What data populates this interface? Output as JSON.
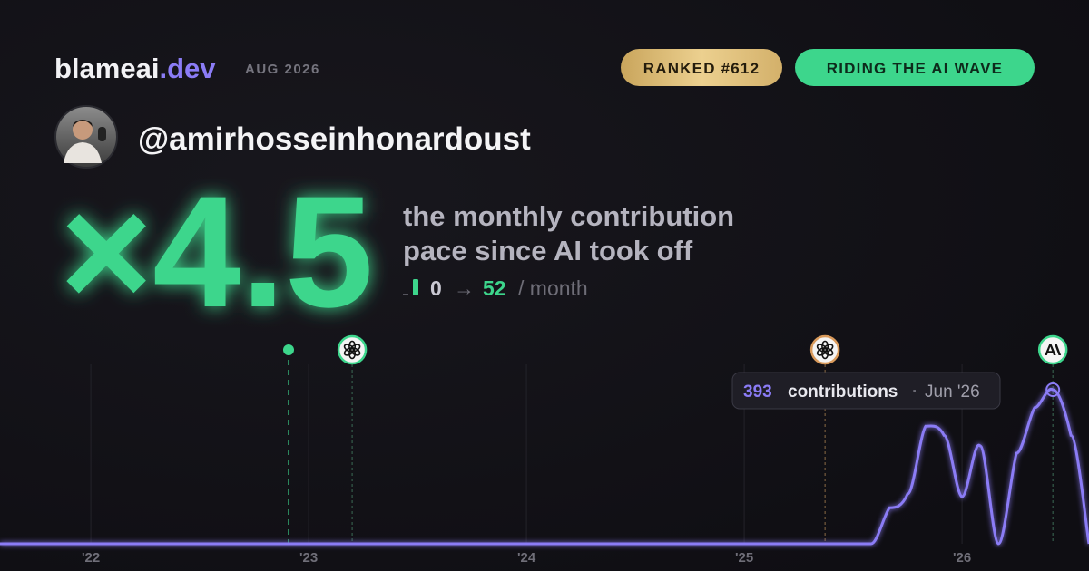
{
  "header": {
    "brand": "blameai",
    "brand_tld": ".dev",
    "date": "AUG 2026",
    "badges": [
      "RANKED #612",
      "RIDING THE AI WAVE"
    ]
  },
  "user": {
    "handle": "@amirhosseinhonardoust"
  },
  "stat": {
    "multiplier": "×4.5",
    "caption": [
      "the monthly contribution",
      "pace since AI took off"
    ],
    "before": 0,
    "arrow": "→",
    "after": 52,
    "unit": "/ month"
  },
  "chart_data": {
    "type": "line",
    "x": [
      2021.583,
      2025.583,
      2025.667,
      2025.75,
      2025.833,
      2025.917,
      2026.0,
      2026.083,
      2026.167,
      2026.25,
      2026.333,
      2026.417,
      2026.5,
      2026.583
    ],
    "series": [
      {
        "color": "#8b7cf6",
        "values": [
          0,
          0,
          92,
          127,
          300,
          277,
          120,
          250,
          0,
          231,
          347,
          393,
          277,
          0
        ]
      }
    ],
    "xlim": [
      2021.583,
      2026.583
    ],
    "ylim": [
      0,
      400
    ],
    "xticks": [
      {
        "value": 2022,
        "label": "'22"
      },
      {
        "value": 2023,
        "label": "'23"
      },
      {
        "value": 2024,
        "label": "'24"
      },
      {
        "value": 2025,
        "label": "'25"
      },
      {
        "value": 2026,
        "label": "'26"
      }
    ],
    "grid": true,
    "events": [
      2022.908,
      2023.2,
      2025.371,
      2026.417
    ],
    "tooltip": {
      "point": 11,
      "label": "contributions",
      "separator": "·",
      "date": "Jun '26"
    }
  }
}
